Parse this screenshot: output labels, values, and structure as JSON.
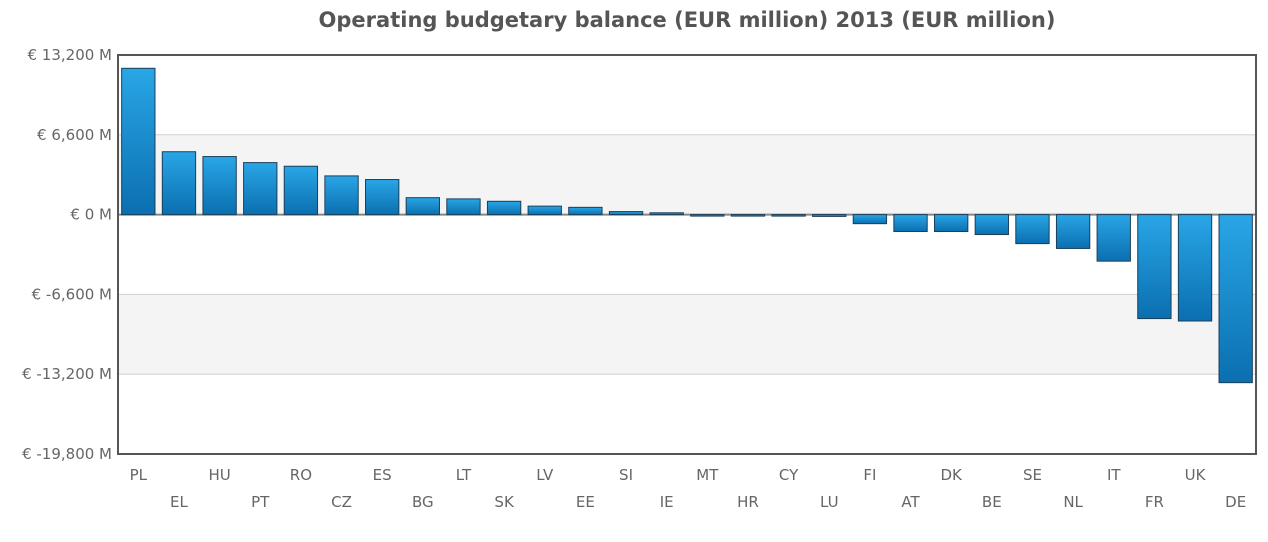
{
  "chart_data": {
    "type": "bar",
    "title": "Operating budgetary balance (EUR million) 2013 (EUR million)",
    "xlabel": "",
    "ylabel": "",
    "categories": [
      "PL",
      "EL",
      "HU",
      "PT",
      "RO",
      "CZ",
      "ES",
      "BG",
      "LT",
      "SK",
      "LV",
      "EE",
      "SI",
      "IE",
      "MT",
      "HR",
      "CY",
      "LU",
      "FI",
      "AT",
      "DK",
      "BE",
      "SE",
      "NL",
      "IT",
      "FR",
      "UK",
      "DE"
    ],
    "values": [
      12100,
      5200,
      4800,
      4300,
      4000,
      3200,
      2900,
      1400,
      1300,
      1100,
      700,
      600,
      250,
      150,
      -50,
      -50,
      -70,
      -150,
      -750,
      -1400,
      -1400,
      -1650,
      -2400,
      -2800,
      -3850,
      -8600,
      -8800,
      -13900
    ],
    "ylim": [
      -19800,
      13200
    ],
    "yticks": [
      "€ 13,200 M",
      "€ 6,600 M",
      "€ 0 M",
      "€ -6,600 M",
      "€ -13,200 M",
      "€ -19,800 M"
    ],
    "grid": true,
    "legend": "none",
    "colors": {
      "bar_top": "#29a6e6",
      "bar_bottom": "#0b6fb0",
      "bar_stroke": "#1a3f5a",
      "band": "#f4f4f4",
      "grid": "#d0d0d0",
      "frame": "#555555",
      "zero_line": "#888888"
    }
  }
}
